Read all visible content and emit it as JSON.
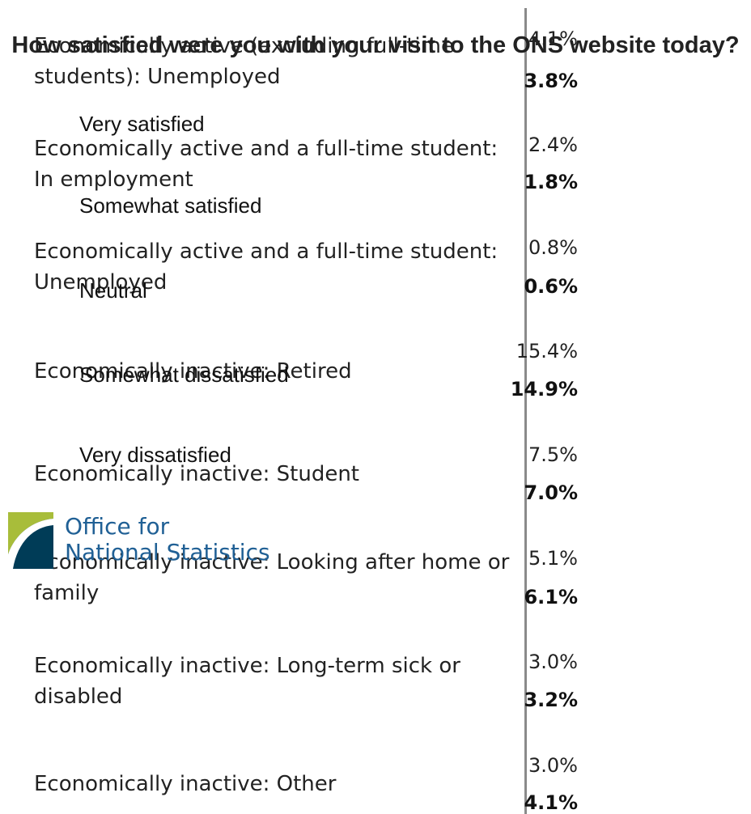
{
  "survey": {
    "question": "How satisfied were you with your visit to the ONS website today?",
    "options": [
      "Very satisfied",
      "Somewhat satisfied",
      "Neutral",
      "Somewhat dissatisfied",
      "Very dissatisfied"
    ]
  },
  "logo": {
    "line1": "Office for",
    "line2": "National Statistics",
    "colors": {
      "navy": "#003c57",
      "green": "#a8bd3a",
      "blue": "#206095"
    }
  },
  "chart_data": {
    "type": "bar",
    "categories": [
      "Economically active (excluding full-time students): Unemployed",
      "Economically active and a full-time student: In employment",
      "Economically active and a full-time student: Unemployed",
      "Economically inactive: Retired",
      "Economically inactive: Student",
      "Economically inactive: Looking after home or family",
      "Economically inactive: Long-term sick or disabled",
      "Economically inactive: Other"
    ],
    "series": [
      {
        "values": [
          4.1,
          2.4,
          0.8,
          15.4,
          7.5,
          5.1,
          3.0,
          3.0
        ],
        "labels": [
          "4.1%",
          "2.4%",
          "0.8%",
          "15.4%",
          "7.5%",
          "5.1%",
          "3.0%",
          "3.0%"
        ]
      },
      {
        "values": [
          3.8,
          1.8,
          0.6,
          14.9,
          7.0,
          6.1,
          3.2,
          4.1
        ],
        "labels": [
          "3.8%",
          "1.8%",
          "0.6%",
          "14.9%",
          "7.0%",
          "6.1%",
          "3.2%",
          "4.1%"
        ]
      }
    ]
  }
}
